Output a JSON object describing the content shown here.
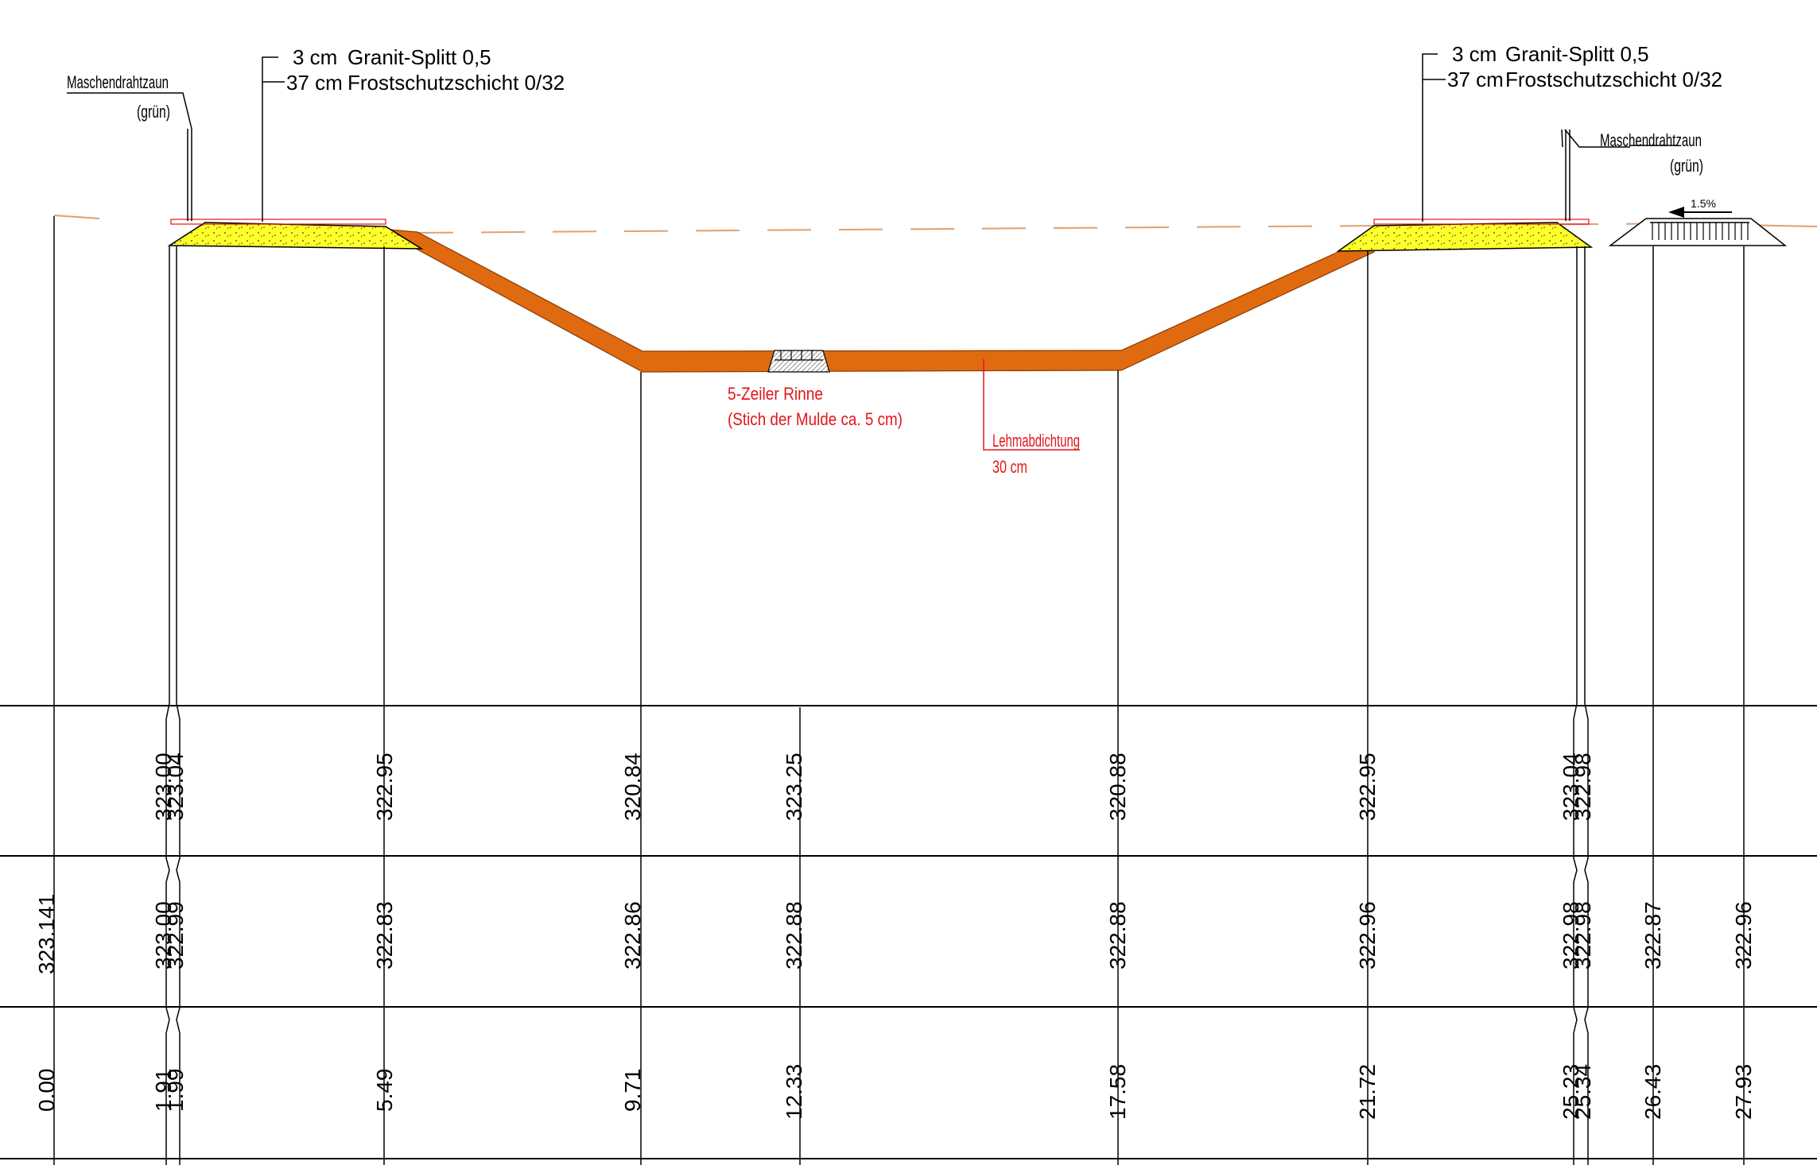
{
  "annotations": {
    "left_fence": {
      "name": "Maschendrahtzaun",
      "color": "(grün)"
    },
    "right_fence": {
      "name": "Maschendrahtzaun",
      "color": "(grün)"
    },
    "left_layers": [
      {
        "thickness": "3 cm",
        "material": "Granit-Splitt 0,5"
      },
      {
        "thickness": "37 cm",
        "material": "Frostschutzschicht 0/32"
      }
    ],
    "right_layers": [
      {
        "thickness": "3 cm",
        "material": "Granit-Splitt 0,5"
      },
      {
        "thickness": "37 cm",
        "material": "Frostschutzschicht 0/32"
      }
    ],
    "gutter": {
      "line1": "5-Zeiler Rinne",
      "line2": "(Stich der Mulde ca. 5 cm)"
    },
    "clay": {
      "line1": "Lehmabdichtung",
      "line2": "30 cm"
    },
    "slope": "1.5%"
  },
  "table": {
    "planned_elevation": [
      "323.00",
      "323.04",
      "322.95",
      "320.84",
      "323.25",
      "320.88",
      "322.95",
      "323.04",
      "322.98"
    ],
    "existing_elevation": [
      "323.141",
      "323.00",
      "322.99",
      "322.83",
      "322.86",
      "322.88",
      "322.88",
      "322.96",
      "322.98",
      "322.98",
      "322.87",
      "322.96"
    ],
    "station": [
      "0.00",
      "1.91",
      "1.99",
      "5.49",
      "9.71",
      "12.33",
      "17.58",
      "21.72",
      "25.23",
      "25.34",
      "26.43",
      "27.93"
    ]
  },
  "colors": {
    "clay_seal": "#e06a10",
    "gravel": "#ffff2a",
    "annotation_red": "#e3151a",
    "ground_line": "#e0a070"
  }
}
